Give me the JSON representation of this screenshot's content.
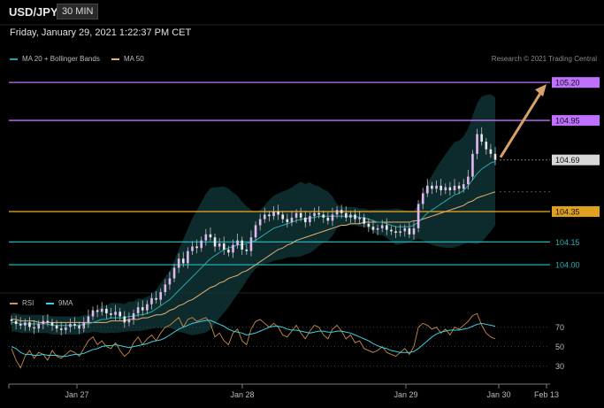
{
  "header": {
    "symbol": "USD/JPY",
    "interval": "30 MIN",
    "timestamp": "Friday, January 29, 2021 1:22:37 PM CET",
    "credit": "Research © 2021 Trading Central"
  },
  "legend": {
    "main": [
      {
        "label": "MA 20 + Bollinger Bands",
        "color": "#20a0a0"
      },
      {
        "label": "MA 50",
        "color": "#e6b070"
      }
    ],
    "rsi": [
      {
        "label": "RSI",
        "color": "#d09050"
      },
      {
        "label": "9MA",
        "color": "#40d0e0"
      }
    ]
  },
  "chart_data": {
    "type": "candlestick",
    "symbol": "USD/JPY",
    "x_ticks": [
      "Jan 27",
      "Jan 28",
      "Jan 29",
      "Jan 30",
      "Feb 13"
    ],
    "price_range": [
      103.82,
      105.3
    ],
    "current_price": 104.69,
    "levels": [
      {
        "value": 105.2,
        "label": "105.20",
        "kind": "resistance",
        "color": "#c070ff"
      },
      {
        "value": 104.95,
        "label": "104.95",
        "kind": "resistance",
        "color": "#c070ff"
      },
      {
        "value": 104.69,
        "label": "104.69",
        "kind": "current",
        "color": "#d8d8d8"
      },
      {
        "value": 104.35,
        "label": "104.35",
        "kind": "pivot",
        "color": "#e0a020"
      },
      {
        "value": 104.15,
        "label": "104.15",
        "kind": "support",
        "color": "#20b0b0"
      },
      {
        "value": 104.0,
        "label": "104.00",
        "kind": "support",
        "color": "#20b0b0"
      }
    ],
    "closes": [
      103.63,
      103.61,
      103.6,
      103.62,
      103.59,
      103.58,
      103.61,
      103.63,
      103.62,
      103.6,
      103.58,
      103.57,
      103.59,
      103.61,
      103.6,
      103.58,
      103.62,
      103.66,
      103.7,
      103.69,
      103.71,
      103.68,
      103.67,
      103.69,
      103.66,
      103.62,
      103.64,
      103.68,
      103.72,
      103.7,
      103.74,
      103.78,
      103.77,
      103.82,
      103.87,
      103.91,
      103.98,
      104.04,
      104.01,
      104.09,
      104.12,
      104.11,
      104.16,
      104.2,
      104.18,
      104.12,
      104.14,
      104.1,
      104.08,
      104.13,
      104.16,
      104.1,
      104.09,
      104.18,
      104.26,
      104.3,
      104.33,
      104.32,
      104.35,
      104.33,
      104.3,
      104.28,
      104.31,
      104.34,
      104.31,
      104.28,
      104.32,
      104.34,
      104.33,
      104.31,
      104.29,
      104.33,
      104.36,
      104.34,
      104.31,
      104.33,
      104.3,
      104.31,
      104.27,
      104.25,
      104.23,
      104.24,
      104.26,
      104.23,
      104.22,
      104.21,
      104.22,
      104.24,
      104.2,
      104.24,
      104.4,
      104.47,
      104.52,
      104.5,
      104.52,
      104.49,
      104.51,
      104.49,
      104.52,
      104.5,
      104.53,
      104.58,
      104.73,
      104.86,
      104.81,
      104.76,
      104.73,
      104.69
    ],
    "ma20": [
      103.62,
      103.62,
      103.61,
      103.61,
      103.61,
      103.61,
      103.61,
      103.61,
      103.61,
      103.6,
      103.6,
      103.6,
      103.6,
      103.6,
      103.6,
      103.6,
      103.61,
      103.61,
      103.62,
      103.63,
      103.64,
      103.64,
      103.65,
      103.65,
      103.65,
      103.65,
      103.66,
      103.66,
      103.67,
      103.67,
      103.68,
      103.69,
      103.71,
      103.73,
      103.75,
      103.77,
      103.8,
      103.83,
      103.86,
      103.89,
      103.92,
      103.95,
      103.98,
      104.01,
      104.04,
      104.06,
      104.08,
      104.1,
      104.11,
      104.12,
      104.13,
      104.13,
      104.14,
      104.15,
      104.16,
      104.18,
      104.2,
      104.22,
      104.24,
      104.25,
      104.26,
      104.27,
      104.28,
      104.29,
      104.3,
      104.3,
      104.31,
      104.31,
      104.32,
      104.32,
      104.32,
      104.32,
      104.32,
      104.32,
      104.32,
      104.32,
      104.32,
      104.31,
      104.31,
      104.3,
      104.29,
      104.28,
      104.28,
      104.27,
      104.26,
      104.25,
      104.25,
      104.25,
      104.25,
      104.26,
      104.28,
      104.31,
      104.34,
      104.36,
      104.38,
      104.4,
      104.42,
      104.44,
      104.46,
      104.47,
      104.49,
      104.52,
      104.56,
      104.6,
      104.63,
      104.65,
      104.67,
      104.68
    ],
    "ma50": [
      103.64,
      103.64,
      103.63,
      103.63,
      103.63,
      103.63,
      103.62,
      103.62,
      103.62,
      103.62,
      103.62,
      103.62,
      103.62,
      103.62,
      103.62,
      103.62,
      103.62,
      103.62,
      103.62,
      103.62,
      103.62,
      103.62,
      103.63,
      103.63,
      103.63,
      103.63,
      103.64,
      103.64,
      103.64,
      103.65,
      103.65,
      103.66,
      103.67,
      103.67,
      103.68,
      103.7,
      103.71,
      103.73,
      103.74,
      103.76,
      103.77,
      103.79,
      103.81,
      103.83,
      103.85,
      103.86,
      103.88,
      103.89,
      103.91,
      103.92,
      103.93,
      103.95,
      103.96,
      103.98,
      104.0,
      104.02,
      104.04,
      104.06,
      104.08,
      104.1,
      104.11,
      104.13,
      104.14,
      104.16,
      104.17,
      104.18,
      104.19,
      104.2,
      104.21,
      104.22,
      104.23,
      104.24,
      104.25,
      104.26,
      104.26,
      104.27,
      104.27,
      104.27,
      104.28,
      104.28,
      104.28,
      104.28,
      104.28,
      104.28,
      104.28,
      104.28,
      104.28,
      104.28,
      104.28,
      104.29,
      104.29,
      104.3,
      104.31,
      104.32,
      104.33,
      104.34,
      104.35,
      104.36,
      104.37,
      104.38,
      104.39,
      104.41,
      104.42,
      104.44,
      104.45,
      104.46,
      104.47,
      104.48
    ],
    "rsi_levels": [
      70,
      50,
      30
    ],
    "rsi_range": [
      15,
      88
    ],
    "rsi": [
      48,
      36,
      28,
      40,
      46,
      38,
      44,
      42,
      36,
      46,
      40,
      38,
      42,
      46,
      44,
      40,
      48,
      56,
      60,
      52,
      56,
      50,
      48,
      54,
      46,
      40,
      44,
      54,
      60,
      52,
      58,
      62,
      56,
      64,
      70,
      72,
      76,
      80,
      70,
      78,
      80,
      76,
      78,
      80,
      74,
      60,
      64,
      56,
      52,
      64,
      68,
      56,
      52,
      68,
      76,
      78,
      74,
      70,
      74,
      70,
      62,
      60,
      66,
      72,
      64,
      58,
      66,
      72,
      70,
      62,
      58,
      68,
      72,
      66,
      58,
      62,
      54,
      56,
      48,
      46,
      44,
      46,
      50,
      44,
      42,
      40,
      44,
      48,
      42,
      50,
      70,
      74,
      72,
      68,
      70,
      64,
      68,
      62,
      70,
      68,
      72,
      76,
      82,
      84,
      72,
      64,
      60,
      58
    ],
    "rsi_ma": [
      50,
      48,
      44,
      42,
      42,
      41,
      41,
      42,
      41,
      41,
      41,
      40,
      40,
      41,
      42,
      42,
      43,
      45,
      47,
      48,
      50,
      51,
      51,
      52,
      51,
      50,
      49,
      50,
      51,
      52,
      53,
      55,
      56,
      57,
      59,
      62,
      65,
      68,
      70,
      72,
      74,
      75,
      76,
      77,
      77,
      75,
      73,
      71,
      68,
      66,
      65,
      64,
      62,
      63,
      64,
      66,
      68,
      70,
      71,
      71,
      70,
      68,
      67,
      67,
      66,
      65,
      64,
      65,
      66,
      66,
      65,
      65,
      66,
      66,
      65,
      64,
      62,
      60,
      58,
      56,
      53,
      51,
      49,
      48,
      46,
      45,
      44,
      44,
      44,
      45,
      48,
      52,
      56,
      60,
      63,
      65,
      66,
      67,
      67,
      67,
      68,
      69,
      71,
      73,
      74,
      73,
      72,
      71
    ],
    "forecast_arrow": {
      "from": 104.69,
      "to": 105.2
    }
  }
}
